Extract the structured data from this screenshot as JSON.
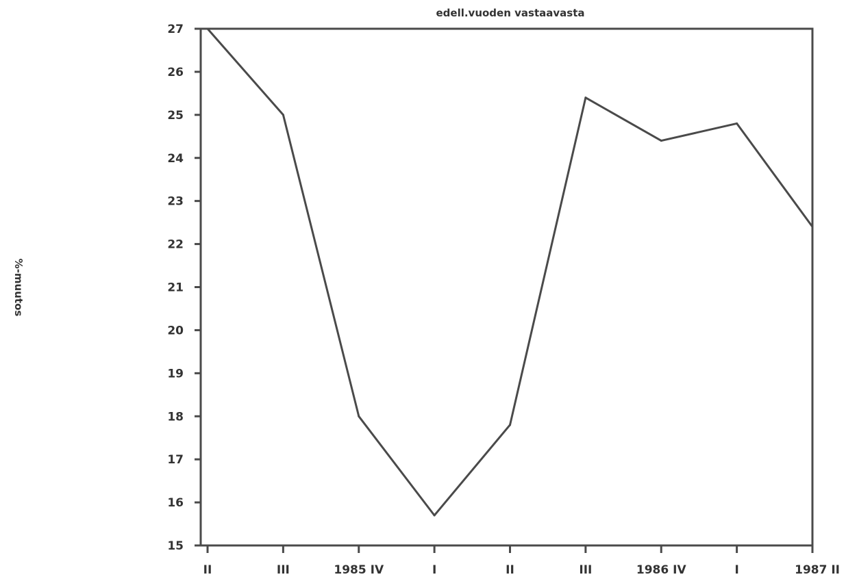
{
  "chart_data": {
    "type": "line",
    "title": "edell.vuoden vastaavasta",
    "xlabel": "",
    "ylabel": "%-muutos",
    "categories": [
      "II",
      "III",
      "1985 IV",
      "I",
      "II",
      "III",
      "1986 IV",
      "I",
      "1987 II"
    ],
    "series": [
      {
        "values": [
          27.0,
          25.0,
          18.0,
          15.7,
          17.8,
          25.4,
          24.4,
          24.8,
          22.4
        ]
      }
    ],
    "yticks": [
      "15",
      "16",
      "17",
      "18",
      "19",
      "20",
      "21",
      "22",
      "23",
      "24",
      "25",
      "26",
      "27"
    ],
    "ylim": [
      15,
      27
    ],
    "grid": false,
    "colors": {
      "line": "#4a4a4a",
      "axis": "#4a4a4a",
      "text": "#333333"
    }
  }
}
